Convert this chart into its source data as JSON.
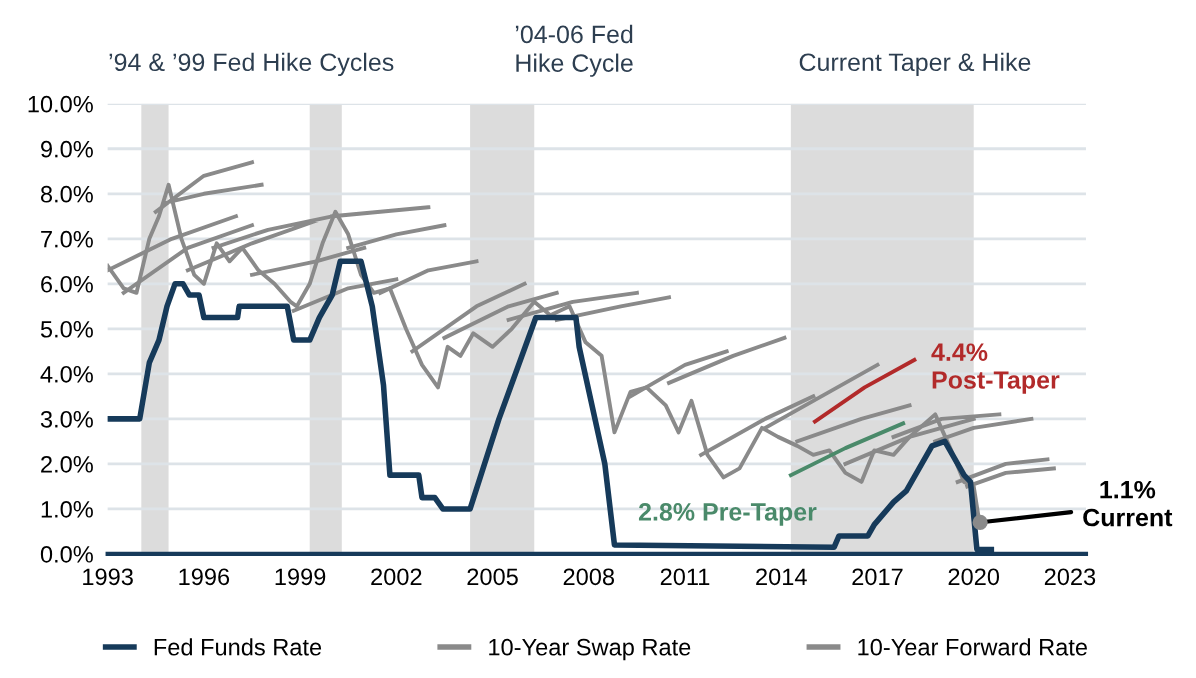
{
  "chart_data": {
    "type": "line",
    "xlim": [
      1993,
      2023.5
    ],
    "xticks": [
      1993,
      1996,
      1999,
      2002,
      2005,
      2008,
      2011,
      2014,
      2017,
      2020,
      2023
    ],
    "ylim": [
      0,
      10
    ],
    "yticks": [
      {
        "value": 0,
        "label": "0.0%"
      },
      {
        "value": 1,
        "label": "1.0%"
      },
      {
        "value": 2,
        "label": "2.0%"
      },
      {
        "value": 3,
        "label": "3.0%"
      },
      {
        "value": 4,
        "label": "4.0%"
      },
      {
        "value": 5,
        "label": "5.0%"
      },
      {
        "value": 6,
        "label": "6.0%"
      },
      {
        "value": 7,
        "label": "7.0%"
      },
      {
        "value": 8,
        "label": "8.0%"
      },
      {
        "value": 9,
        "label": "9.0%"
      },
      {
        "value": 10,
        "label": "10.0%"
      }
    ],
    "grid": "y",
    "legend": "bottom",
    "bands": [
      {
        "axis": "x",
        "from": 1994.05,
        "to": 1994.9,
        "color": "#dcdcdc"
      },
      {
        "axis": "x",
        "from": 1999.3,
        "to": 2000.3,
        "color": "#dcdcdc"
      },
      {
        "axis": "x",
        "from": 2004.3,
        "to": 2006.3,
        "color": "#dcdcdc"
      },
      {
        "axis": "x",
        "from": 2014.3,
        "to": 2020.0,
        "color": "#dcdcdc"
      }
    ],
    "series": [
      {
        "name": "Fed Funds Rate",
        "color": "#163a5a",
        "x": [
          1993,
          1994.0,
          1994.3,
          1994.6,
          1994.85,
          1995.1,
          1995.35,
          1995.55,
          1995.85,
          1996.0,
          1997.05,
          1997.1,
          1998.6,
          1998.8,
          1999.3,
          1999.6,
          2000.0,
          2000.25,
          2000.9,
          2001.25,
          2001.6,
          2001.8,
          2002.7,
          2002.8,
          2003.2,
          2003.45,
          2004.3,
          2005.2,
          2006.35,
          2007.6,
          2007.7,
          2008.5,
          2008.8,
          2015.65,
          2015.8,
          2016.7,
          2016.9,
          2017.2,
          2017.5,
          2017.9,
          2018.3,
          2018.7,
          2019.1,
          2019.5,
          2019.7,
          2019.9,
          2020.1,
          2020.55
        ],
        "values": [
          3.0,
          3.0,
          4.25,
          4.75,
          5.5,
          6.0,
          6.0,
          5.75,
          5.75,
          5.25,
          5.25,
          5.5,
          5.5,
          4.75,
          4.75,
          5.25,
          5.75,
          6.5,
          6.5,
          5.5,
          3.75,
          1.75,
          1.75,
          1.25,
          1.25,
          1.0,
          1.0,
          3.0,
          5.25,
          5.25,
          4.6,
          2.0,
          0.2,
          0.15,
          0.4,
          0.4,
          0.65,
          0.9,
          1.15,
          1.4,
          1.9,
          2.4,
          2.5,
          2.0,
          1.75,
          1.6,
          0.1,
          0.1
        ]
      },
      {
        "name": "10-Year Swap Rate",
        "color": "#8a8a8a",
        "x": [
          1993.0,
          1993.5,
          1993.9,
          1994.3,
          1994.6,
          1994.9,
          1995.3,
          1995.7,
          1996.0,
          1996.4,
          1996.8,
          1997.2,
          1997.7,
          1998.2,
          1998.7,
          1998.9,
          1999.3,
          1999.7,
          2000.1,
          2000.5,
          2000.9,
          2001.3,
          2001.8,
          2002.3,
          2002.8,
          2003.3,
          2003.6,
          2004.0,
          2004.4,
          2005.0,
          2005.6,
          2006.3,
          2006.8,
          2007.4,
          2007.9,
          2008.4,
          2008.8,
          2009.3,
          2009.8,
          2010.4,
          2010.8,
          2011.2,
          2011.7,
          2012.2,
          2012.7,
          2013.4,
          2013.9,
          2014.5,
          2015.0,
          2015.5,
          2016.0,
          2016.5,
          2016.9,
          2017.5,
          2018.0,
          2018.8,
          2019.3,
          2019.7,
          2020.0,
          2020.2
        ],
        "values": [
          6.4,
          5.9,
          5.8,
          7.0,
          7.5,
          8.2,
          7.0,
          6.2,
          6.0,
          6.9,
          6.5,
          6.8,
          6.3,
          6.0,
          5.6,
          5.5,
          6.0,
          6.9,
          7.6,
          7.1,
          6.2,
          5.8,
          5.9,
          5.0,
          4.2,
          3.7,
          4.6,
          4.4,
          4.9,
          4.6,
          5.0,
          5.6,
          5.3,
          5.5,
          4.7,
          4.4,
          2.7,
          3.6,
          3.7,
          3.3,
          2.7,
          3.4,
          2.2,
          1.7,
          1.9,
          2.8,
          2.6,
          2.4,
          2.2,
          2.3,
          1.8,
          1.6,
          2.3,
          2.2,
          2.6,
          3.1,
          2.3,
          1.6,
          1.5,
          0.6
        ]
      },
      {
        "name": "10-Year Forward Rate",
        "color": "#8a8a8a",
        "x": [
          1993.0,
          1995,
          1997,
          null,
          1993.5,
          1995.5,
          1997.5,
          null,
          1994.5,
          1996,
          1997.5,
          null,
          1994.8,
          1996,
          1997.8,
          null,
          1995.5,
          1997.5,
          1999.5,
          null,
          1996.3,
          1998,
          2000,
          null,
          1997.5,
          1999.5,
          2001,
          null,
          1998.8,
          2000.5,
          2002,
          null,
          2000.0,
          2001.5,
          2003,
          null,
          2000.5,
          2002,
          2003.5,
          null,
          2001.5,
          2003,
          2004.5,
          null,
          2002.5,
          2004.5,
          2006,
          null,
          2003.5,
          2005.5,
          2007,
          null,
          2005.5,
          2007.5,
          2009.5,
          null,
          2007.0,
          2009,
          2010.5,
          null,
          2010.5,
          2012.5,
          2014.1,
          null,
          2009.3,
          2011,
          2012.3,
          null,
          2011.5,
          2013.5,
          2015,
          null,
          2013.5,
          2015.5,
          2017.0,
          null,
          2014.5,
          2016.5,
          2018,
          null,
          2016.0,
          2018,
          2020,
          null,
          2017.5,
          2019,
          2020.8,
          null,
          2018.8,
          2020,
          2021.8,
          null,
          2019.5,
          2021,
          2022.3,
          null,
          2019.8,
          2021,
          2022.5
        ],
        "values": [
          6.3,
          7.0,
          7.5,
          null,
          5.8,
          6.8,
          7.3,
          null,
          7.6,
          8.4,
          8.7,
          null,
          7.8,
          8.0,
          8.2,
          null,
          6.3,
          6.9,
          7.4,
          null,
          6.8,
          7.2,
          7.5,
          null,
          6.2,
          6.5,
          6.8,
          null,
          5.4,
          5.9,
          6.1,
          null,
          7.5,
          7.6,
          7.7,
          null,
          6.8,
          7.1,
          7.3,
          null,
          5.8,
          6.3,
          6.5,
          null,
          4.5,
          5.5,
          6.0,
          null,
          4.8,
          5.5,
          5.8,
          null,
          5.2,
          5.6,
          5.8,
          null,
          5.2,
          5.5,
          5.7,
          null,
          3.8,
          4.4,
          4.8,
          null,
          3.5,
          4.2,
          4.5,
          null,
          2.2,
          3.0,
          3.5,
          null,
          2.8,
          3.6,
          4.2,
          null,
          2.5,
          3.0,
          3.3,
          null,
          2.0,
          2.6,
          3.0,
          null,
          2.6,
          3.0,
          3.1,
          null,
          2.5,
          2.8,
          3.0,
          null,
          1.6,
          2.0,
          2.1,
          null,
          1.5,
          1.8,
          1.9
        ]
      },
      {
        "color": "#b22a2a",
        "x": [
          2015.05,
          2016.6,
          2018.15
        ],
        "values": [
          2.94,
          3.7,
          4.31
        ]
      },
      {
        "color": "#4a8a6a",
        "x": [
          2014.3,
          2016.0,
          2017.8
        ],
        "values": [
          1.75,
          2.35,
          2.9
        ]
      },
      {
        "type": "scatter",
        "color": "#8a8a8a",
        "x": [
          2020.2
        ],
        "values": [
          0.7
        ]
      }
    ],
    "annotations": [
      "’94 & ’99 Fed Hike Cycles",
      "’04-06 Fed\nHike Cycle",
      "Current Taper & Hike",
      {
        "text": "4.4%\nPost-Taper",
        "x": 2018.15,
        "y": 4.31
      },
      {
        "text": "2.8% Pre-Taper",
        "x": 2014.3,
        "y": 1.75
      },
      {
        "text": "1.1%\nCurrent",
        "x": 2020.2,
        "y": 0.7
      }
    ]
  }
}
